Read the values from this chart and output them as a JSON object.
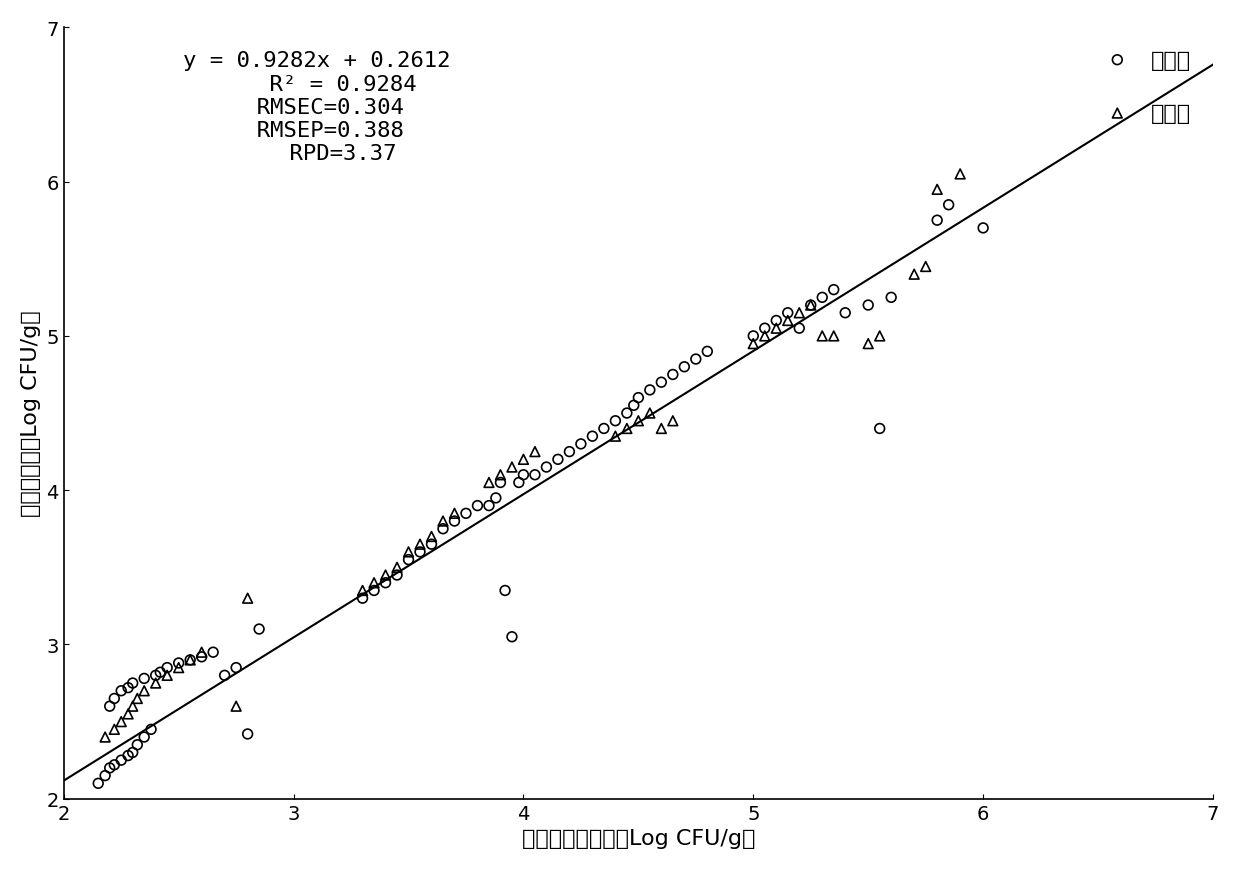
{
  "equation": "y = 0.9282x + 0.2612",
  "r2": "R² = 0.9284",
  "rmsec": "RMSEC=0.304",
  "rmsep": "RMSEP=0.388",
  "rpd": "RPD=3.37",
  "slope": 0.9282,
  "intercept": 0.2612,
  "xlim": [
    2,
    7
  ],
  "ylim": [
    2,
    7
  ],
  "xticks": [
    2,
    3,
    4,
    5,
    6,
    7
  ],
  "yticks": [
    2,
    3,
    4,
    5,
    6,
    7
  ],
  "xlabel": "菌落总数真实値（Log CFU/g）",
  "ylabel": "光谱预测値（Log CFU/g）",
  "legend_calibration": "建模集",
  "legend_prediction": "预测集",
  "calibration_x": [
    2.15,
    2.18,
    2.2,
    2.22,
    2.25,
    2.28,
    2.3,
    2.32,
    2.35,
    2.38,
    2.2,
    2.22,
    2.25,
    2.28,
    2.3,
    2.35,
    2.4,
    2.42,
    2.45,
    2.5,
    2.55,
    2.6,
    2.65,
    2.7,
    2.75,
    2.8,
    2.85,
    3.3,
    3.35,
    3.4,
    3.45,
    3.5,
    3.55,
    3.6,
    3.65,
    3.7,
    3.75,
    3.8,
    3.85,
    3.88,
    3.9,
    3.92,
    3.95,
    3.98,
    4.0,
    4.05,
    4.1,
    4.15,
    4.2,
    4.25,
    4.3,
    4.35,
    4.4,
    4.45,
    4.48,
    4.5,
    4.55,
    4.6,
    4.65,
    4.7,
    4.75,
    4.8,
    5.0,
    5.05,
    5.1,
    5.15,
    5.2,
    5.25,
    5.3,
    5.35,
    5.4,
    5.5,
    5.55,
    5.6,
    5.8,
    5.85,
    6.0
  ],
  "calibration_y": [
    2.1,
    2.15,
    2.2,
    2.22,
    2.25,
    2.28,
    2.3,
    2.35,
    2.4,
    2.45,
    2.6,
    2.65,
    2.7,
    2.72,
    2.75,
    2.78,
    2.8,
    2.82,
    2.85,
    2.88,
    2.9,
    2.92,
    2.95,
    2.8,
    2.85,
    2.42,
    3.1,
    3.3,
    3.35,
    3.4,
    3.45,
    3.55,
    3.6,
    3.65,
    3.75,
    3.8,
    3.85,
    3.9,
    3.9,
    3.95,
    4.05,
    3.35,
    3.05,
    4.05,
    4.1,
    4.1,
    4.15,
    4.2,
    4.25,
    4.3,
    4.35,
    4.4,
    4.45,
    4.5,
    4.55,
    4.6,
    4.65,
    4.7,
    4.75,
    4.8,
    4.85,
    4.9,
    5.0,
    5.05,
    5.1,
    5.15,
    5.05,
    5.2,
    5.25,
    5.3,
    5.15,
    5.2,
    4.4,
    5.25,
    5.75,
    5.85,
    5.7
  ],
  "prediction_x": [
    2.18,
    2.22,
    2.25,
    2.28,
    2.3,
    2.32,
    2.35,
    2.4,
    2.45,
    2.5,
    2.55,
    2.6,
    2.75,
    2.8,
    3.3,
    3.35,
    3.4,
    3.45,
    3.5,
    3.55,
    3.6,
    3.65,
    3.7,
    3.85,
    3.9,
    3.95,
    4.0,
    4.05,
    4.4,
    4.45,
    4.5,
    4.55,
    4.6,
    4.65,
    5.0,
    5.05,
    5.1,
    5.15,
    5.2,
    5.25,
    5.3,
    5.35,
    5.5,
    5.55,
    5.7,
    5.75,
    5.8,
    5.9
  ],
  "prediction_y": [
    2.4,
    2.45,
    2.5,
    2.55,
    2.6,
    2.65,
    2.7,
    2.75,
    2.8,
    2.85,
    2.9,
    2.95,
    2.6,
    3.3,
    3.35,
    3.4,
    3.45,
    3.5,
    3.6,
    3.65,
    3.7,
    3.8,
    3.85,
    4.05,
    4.1,
    4.15,
    4.2,
    4.25,
    4.35,
    4.4,
    4.45,
    4.5,
    4.4,
    4.45,
    4.95,
    5.0,
    5.05,
    5.1,
    5.15,
    5.2,
    5.0,
    5.0,
    4.95,
    5.0,
    5.4,
    5.45,
    5.95,
    6.05
  ],
  "line_color": "#000000",
  "scatter_color": "#000000",
  "background_color": "#ffffff",
  "annotation_fontsize": 16,
  "axis_fontsize": 16,
  "tick_fontsize": 14,
  "legend_fontsize": 16,
  "marker_size": 7,
  "line_width": 1.5
}
